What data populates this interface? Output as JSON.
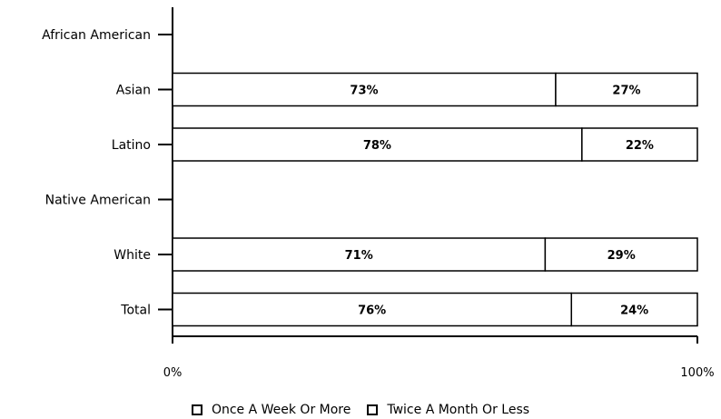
{
  "chart_data": {
    "type": "bar",
    "orientation": "horizontal",
    "stacked": true,
    "categories": [
      "African American",
      "Asian",
      "Latino",
      "Native American",
      "White",
      "Total"
    ],
    "series": [
      {
        "name": "Once A Week Or More",
        "values": [
          null,
          73,
          78,
          null,
          71,
          76
        ],
        "labels": [
          "",
          "73%",
          "78%",
          "",
          "71%",
          "76%"
        ]
      },
      {
        "name": "Twice A Month Or Less",
        "values": [
          null,
          27,
          22,
          null,
          29,
          24
        ],
        "labels": [
          "",
          "27%",
          "22%",
          "",
          "29%",
          "24%"
        ]
      }
    ],
    "xlim": [
      0,
      100
    ],
    "x_ticks": [
      "0%",
      "100%"
    ],
    "legend_position": "bottom",
    "grid": false,
    "colors": {
      "fill": "#ffffff",
      "stroke": "#000000"
    }
  }
}
